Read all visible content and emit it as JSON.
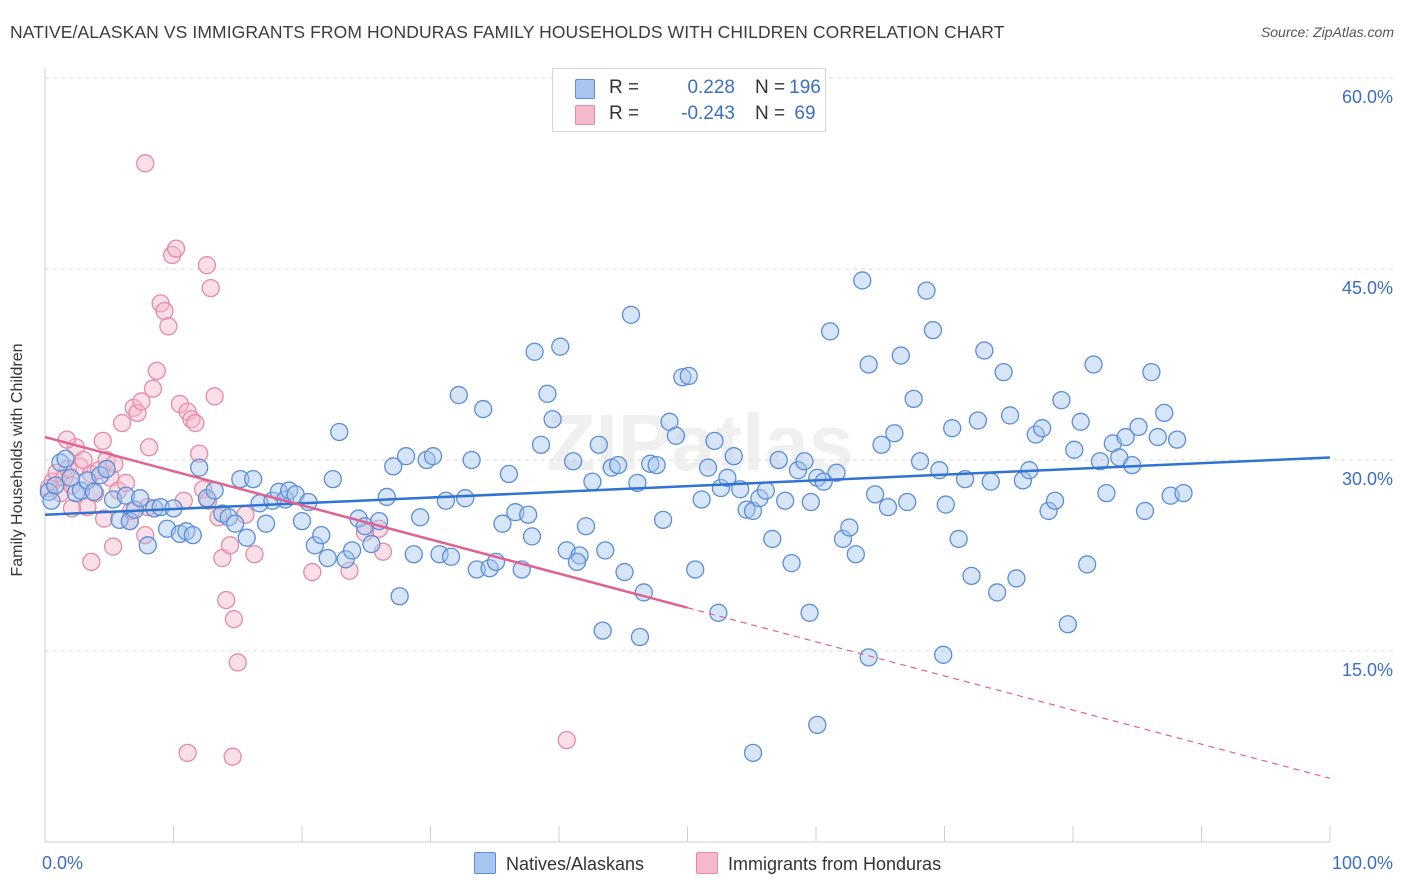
{
  "title": "NATIVE/ALASKAN VS IMMIGRANTS FROM HONDURAS FAMILY HOUSEHOLDS WITH CHILDREN CORRELATION CHART",
  "source": "Source: ZipAtlas.com",
  "watermark": "ZIPatlas",
  "legend": {
    "rows": [
      {
        "label": "R =",
        "r": "0.228",
        "n_label": "N =",
        "n": "196"
      },
      {
        "label": "R =",
        "r": "-0.243",
        "n_label": "N =",
        "n": "69"
      }
    ],
    "series_names": [
      "Natives/Alaskans",
      "Immigrants from Honduras"
    ]
  },
  "colors": {
    "blue_fill": "#a7c5ef",
    "blue_stroke": "#5b8ed6",
    "blue_line": "#2f74d0",
    "pink_fill": "#f6b8cb",
    "pink_stroke": "#e58aa7",
    "pink_line": "#e0628f",
    "axis_label": "#3a6fc4",
    "grid": "#d8d8d8"
  },
  "chart_data": {
    "type": "scatter",
    "title": "NATIVE/ALASKAN VS IMMIGRANTS FROM HONDURAS FAMILY HOUSEHOLDS WITH CHILDREN CORRELATION CHART",
    "xlabel": "",
    "ylabel": "Family Households with Children",
    "xlim": [
      0,
      100
    ],
    "ylim": [
      0,
      60
    ],
    "x_tick_labels": [
      "0.0%",
      "100.0%"
    ],
    "y_ticks": [
      15,
      30,
      45,
      60
    ],
    "y_tick_labels": [
      "15.0%",
      "30.0%",
      "45.0%",
      "60.0%"
    ],
    "legend_position": "top-center",
    "series": [
      {
        "name": "Natives/Alaskans",
        "r": 0.228,
        "n": 196,
        "trend": {
          "x": [
            0,
            100
          ],
          "y": [
            25.7,
            30.2
          ]
        },
        "points": [
          [
            0.3,
            27.5
          ],
          [
            0.5,
            26.8
          ],
          [
            0.8,
            28.0
          ],
          [
            1.2,
            29.8
          ],
          [
            1.6,
            30.1
          ],
          [
            2.0,
            28.6
          ],
          [
            2.4,
            27.4
          ],
          [
            2.8,
            27.6
          ],
          [
            3.3,
            28.4
          ],
          [
            3.8,
            27.5
          ],
          [
            4.3,
            28.8
          ],
          [
            4.8,
            29.3
          ],
          [
            5.3,
            26.9
          ],
          [
            5.8,
            25.3
          ],
          [
            6.3,
            27.2
          ],
          [
            6.6,
            25.2
          ],
          [
            7.0,
            26.1
          ],
          [
            7.4,
            27.0
          ],
          [
            8.0,
            23.3
          ],
          [
            8.5,
            26.2
          ],
          [
            9.0,
            26.3
          ],
          [
            9.5,
            24.6
          ],
          [
            10.0,
            26.2
          ],
          [
            10.5,
            24.2
          ],
          [
            11.0,
            24.4
          ],
          [
            11.5,
            24.1
          ],
          [
            12.0,
            29.4
          ],
          [
            12.6,
            27.0
          ],
          [
            13.2,
            27.6
          ],
          [
            13.8,
            25.8
          ],
          [
            14.3,
            25.5
          ],
          [
            14.8,
            25.0
          ],
          [
            15.2,
            28.5
          ],
          [
            15.7,
            23.9
          ],
          [
            16.2,
            28.5
          ],
          [
            16.7,
            26.6
          ],
          [
            17.2,
            25.0
          ],
          [
            17.7,
            26.8
          ],
          [
            18.2,
            27.5
          ],
          [
            18.7,
            26.9
          ],
          [
            19.0,
            27.6
          ],
          [
            19.5,
            27.3
          ],
          [
            20.0,
            25.2
          ],
          [
            20.5,
            26.7
          ],
          [
            21.0,
            23.3
          ],
          [
            21.5,
            24.1
          ],
          [
            22.0,
            22.3
          ],
          [
            22.4,
            28.5
          ],
          [
            22.9,
            32.2
          ],
          [
            23.4,
            22.2
          ],
          [
            23.9,
            22.9
          ],
          [
            24.4,
            25.4
          ],
          [
            24.9,
            24.8
          ],
          [
            25.4,
            23.4
          ],
          [
            26.0,
            25.2
          ],
          [
            26.6,
            27.1
          ],
          [
            27.1,
            29.5
          ],
          [
            27.6,
            19.3
          ],
          [
            28.1,
            30.3
          ],
          [
            28.7,
            22.6
          ],
          [
            29.2,
            25.5
          ],
          [
            29.7,
            30.0
          ],
          [
            30.2,
            30.3
          ],
          [
            30.7,
            22.6
          ],
          [
            31.2,
            26.8
          ],
          [
            31.6,
            22.4
          ],
          [
            32.2,
            35.1
          ],
          [
            32.7,
            27.0
          ],
          [
            33.2,
            30.0
          ],
          [
            33.6,
            21.4
          ],
          [
            34.1,
            34.0
          ],
          [
            34.6,
            21.5
          ],
          [
            35.1,
            22.0
          ],
          [
            35.6,
            25.0
          ],
          [
            36.1,
            28.9
          ],
          [
            36.6,
            25.9
          ],
          [
            37.1,
            21.4
          ],
          [
            37.6,
            25.7
          ],
          [
            38.1,
            38.5
          ],
          [
            38.6,
            31.2
          ],
          [
            39.1,
            35.2
          ],
          [
            39.5,
            33.2
          ],
          [
            40.1,
            38.9
          ],
          [
            40.6,
            22.9
          ],
          [
            41.1,
            29.9
          ],
          [
            41.6,
            22.5
          ],
          [
            42.1,
            24.8
          ],
          [
            42.6,
            28.3
          ],
          [
            43.1,
            31.2
          ],
          [
            43.6,
            22.9
          ],
          [
            44.1,
            29.4
          ],
          [
            44.6,
            29.6
          ],
          [
            45.1,
            21.2
          ],
          [
            45.6,
            41.4
          ],
          [
            46.1,
            28.2
          ],
          [
            46.6,
            19.6
          ],
          [
            47.1,
            29.7
          ],
          [
            47.6,
            29.6
          ],
          [
            48.1,
            25.3
          ],
          [
            48.6,
            33.0
          ],
          [
            49.1,
            31.9
          ],
          [
            49.6,
            36.5
          ],
          [
            50.1,
            36.6
          ],
          [
            50.6,
            21.4
          ],
          [
            51.1,
            26.9
          ],
          [
            51.6,
            29.4
          ],
          [
            52.1,
            31.5
          ],
          [
            52.6,
            27.8
          ],
          [
            53.1,
            28.6
          ],
          [
            53.6,
            30.3
          ],
          [
            54.1,
            27.7
          ],
          [
            54.6,
            26.1
          ],
          [
            55.1,
            26.0
          ],
          [
            55.6,
            27.0
          ],
          [
            56.1,
            27.6
          ],
          [
            56.6,
            23.8
          ],
          [
            57.1,
            30.0
          ],
          [
            57.6,
            26.8
          ],
          [
            58.1,
            21.9
          ],
          [
            58.6,
            29.2
          ],
          [
            59.1,
            29.9
          ],
          [
            59.6,
            26.7
          ],
          [
            60.1,
            28.6
          ],
          [
            60.6,
            28.3
          ],
          [
            61.1,
            40.1
          ],
          [
            61.6,
            29.0
          ],
          [
            62.1,
            23.8
          ],
          [
            62.6,
            24.7
          ],
          [
            63.1,
            22.6
          ],
          [
            63.6,
            44.1
          ],
          [
            64.1,
            37.5
          ],
          [
            64.6,
            27.3
          ],
          [
            65.1,
            31.2
          ],
          [
            65.6,
            26.3
          ],
          [
            66.1,
            32.1
          ],
          [
            66.6,
            38.2
          ],
          [
            67.1,
            26.7
          ],
          [
            67.6,
            34.8
          ],
          [
            68.1,
            29.9
          ],
          [
            68.6,
            43.3
          ],
          [
            69.1,
            40.2
          ],
          [
            69.6,
            29.2
          ],
          [
            70.1,
            26.5
          ],
          [
            70.6,
            32.5
          ],
          [
            71.1,
            23.8
          ],
          [
            71.6,
            28.5
          ],
          [
            72.1,
            20.9
          ],
          [
            72.6,
            33.1
          ],
          [
            73.1,
            38.6
          ],
          [
            73.6,
            28.3
          ],
          [
            74.1,
            19.6
          ],
          [
            74.6,
            36.9
          ],
          [
            75.1,
            33.5
          ],
          [
            75.6,
            20.7
          ],
          [
            76.1,
            28.4
          ],
          [
            76.6,
            29.2
          ],
          [
            77.1,
            32.0
          ],
          [
            77.6,
            32.5
          ],
          [
            78.1,
            26.0
          ],
          [
            78.6,
            26.8
          ],
          [
            79.1,
            34.7
          ],
          [
            79.6,
            17.1
          ],
          [
            80.1,
            30.8
          ],
          [
            80.6,
            33.0
          ],
          [
            81.1,
            21.8
          ],
          [
            81.6,
            37.5
          ],
          [
            82.1,
            29.9
          ],
          [
            82.6,
            27.4
          ],
          [
            83.1,
            31.3
          ],
          [
            83.6,
            30.2
          ],
          [
            84.1,
            31.8
          ],
          [
            84.6,
            29.6
          ],
          [
            85.1,
            32.6
          ],
          [
            85.6,
            26.0
          ],
          [
            86.1,
            36.9
          ],
          [
            86.6,
            31.8
          ],
          [
            87.1,
            33.7
          ],
          [
            87.6,
            27.2
          ],
          [
            88.1,
            31.6
          ],
          [
            88.6,
            27.4
          ],
          [
            43.4,
            16.6
          ],
          [
            46.3,
            16.1
          ],
          [
            52.4,
            18.0
          ],
          [
            59.5,
            18.0
          ],
          [
            69.9,
            14.7
          ],
          [
            60.1,
            9.2
          ],
          [
            55.1,
            7.0
          ],
          [
            64.1,
            14.5
          ],
          [
            41.4,
            22.0
          ],
          [
            37.9,
            24.0
          ]
        ]
      },
      {
        "name": "Immigrants from Honduras",
        "r": -0.243,
        "n": 69,
        "trend": {
          "x": [
            0,
            50
          ],
          "y": [
            31.8,
            18.4
          ]
        },
        "trend_dashed": {
          "x": [
            50,
            100
          ],
          "y": [
            18.4,
            5.0
          ]
        },
        "points": [
          [
            0.3,
            27.8
          ],
          [
            0.6,
            28.3
          ],
          [
            0.9,
            29.0
          ],
          [
            1.2,
            27.4
          ],
          [
            1.5,
            28.6
          ],
          [
            1.8,
            29.3
          ],
          [
            2.1,
            28.0
          ],
          [
            2.4,
            31.0
          ],
          [
            2.7,
            29.5
          ],
          [
            3.0,
            30.0
          ],
          [
            3.3,
            26.3
          ],
          [
            3.6,
            28.9
          ],
          [
            3.9,
            27.4
          ],
          [
            4.2,
            29.2
          ],
          [
            4.5,
            31.5
          ],
          [
            4.8,
            30.0
          ],
          [
            5.1,
            28.6
          ],
          [
            5.4,
            29.7
          ],
          [
            5.7,
            27.6
          ],
          [
            6.0,
            32.9
          ],
          [
            6.3,
            28.2
          ],
          [
            6.6,
            25.2
          ],
          [
            6.9,
            34.1
          ],
          [
            7.2,
            33.7
          ],
          [
            7.5,
            34.6
          ],
          [
            7.8,
            24.1
          ],
          [
            8.1,
            31.0
          ],
          [
            8.4,
            35.6
          ],
          [
            8.7,
            37.0
          ],
          [
            9.0,
            42.3
          ],
          [
            9.3,
            41.7
          ],
          [
            9.6,
            40.5
          ],
          [
            9.9,
            46.1
          ],
          [
            10.2,
            46.6
          ],
          [
            10.5,
            34.4
          ],
          [
            10.8,
            26.8
          ],
          [
            11.1,
            33.8
          ],
          [
            11.4,
            33.2
          ],
          [
            11.7,
            32.9
          ],
          [
            12.0,
            30.5
          ],
          [
            12.3,
            27.7
          ],
          [
            12.6,
            45.3
          ],
          [
            12.9,
            43.5
          ],
          [
            13.2,
            35.0
          ],
          [
            13.5,
            25.5
          ],
          [
            13.8,
            22.3
          ],
          [
            14.1,
            19.0
          ],
          [
            14.4,
            23.3
          ],
          [
            14.7,
            17.5
          ],
          [
            15.0,
            14.1
          ],
          [
            7.8,
            53.3
          ],
          [
            11.1,
            7.0
          ],
          [
            14.6,
            6.7
          ],
          [
            23.7,
            21.3
          ],
          [
            26.0,
            24.6
          ],
          [
            26.3,
            22.8
          ],
          [
            24.9,
            24.3
          ],
          [
            20.8,
            21.2
          ],
          [
            16.3,
            22.6
          ],
          [
            15.6,
            25.7
          ],
          [
            8.0,
            26.3
          ],
          [
            6.7,
            26.0
          ],
          [
            5.3,
            23.2
          ],
          [
            4.6,
            25.4
          ],
          [
            3.6,
            22.0
          ],
          [
            2.1,
            26.2
          ],
          [
            1.7,
            31.6
          ],
          [
            40.6,
            8.0
          ],
          [
            12.7,
            26.8
          ]
        ]
      }
    ]
  }
}
